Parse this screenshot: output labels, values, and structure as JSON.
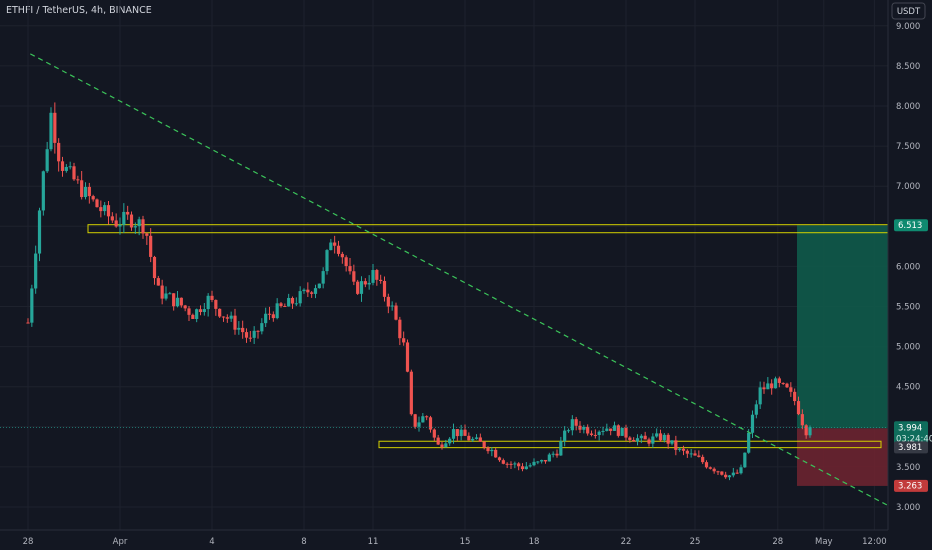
{
  "header": {
    "title": "ETHFI / TetherUS, 4h, BINANCE",
    "currency": "USDT"
  },
  "colors": {
    "background": "#131722",
    "grid": "#1e222d",
    "axis_text": "#b2b5be",
    "up": "#26a69a",
    "down": "#ef5350",
    "zone": "#d4d100",
    "trendline": "#3bc45a",
    "target_fill": "#0f5a4a",
    "stop_fill": "#6b2430"
  },
  "price_axis": {
    "ticks": [
      "9.000",
      "8.500",
      "8.000",
      "7.500",
      "7.000",
      "6.500",
      "6.000",
      "5.500",
      "5.000",
      "4.500",
      "4.000",
      "3.500",
      "3.000"
    ],
    "tags": {
      "target": "6.513",
      "current": "3.994",
      "countdown": "03:24:40",
      "entry": "3.981",
      "stop": "3.263"
    }
  },
  "time_axis": {
    "ticks": [
      "28",
      "Apr",
      "4",
      "8",
      "11",
      "15",
      "18",
      "22",
      "25",
      "28",
      "May",
      "12:00"
    ]
  },
  "chart_data": {
    "type": "candlestick",
    "title": "ETHFI / TetherUS, 4h, BINANCE",
    "ylim": [
      2.75,
      9.25
    ],
    "x_labels": [
      "28",
      "Apr",
      "4",
      "8",
      "11",
      "15",
      "18",
      "22",
      "25",
      "28",
      "May",
      "12:00"
    ],
    "path_points": [
      {
        "d": 0,
        "v": 5.3
      },
      {
        "d": 0.6,
        "v": 7.0
      },
      {
        "d": 1,
        "v": 7.9
      },
      {
        "d": 1.4,
        "v": 7.3
      },
      {
        "d": 2.2,
        "v": 7.0
      },
      {
        "d": 3,
        "v": 6.75
      },
      {
        "d": 3.8,
        "v": 6.55
      },
      {
        "d": 4.4,
        "v": 6.6
      },
      {
        "d": 5.1,
        "v": 6.5
      },
      {
        "d": 5.6,
        "v": 5.7
      },
      {
        "d": 6.5,
        "v": 5.55
      },
      {
        "d": 7.2,
        "v": 5.4
      },
      {
        "d": 7.8,
        "v": 5.6
      },
      {
        "d": 8.5,
        "v": 5.4
      },
      {
        "d": 9.3,
        "v": 5.2
      },
      {
        "d": 9.7,
        "v": 5.05
      },
      {
        "d": 10.4,
        "v": 5.4
      },
      {
        "d": 11.2,
        "v": 5.5
      },
      {
        "d": 12,
        "v": 5.65
      },
      {
        "d": 12.8,
        "v": 5.85
      },
      {
        "d": 13.2,
        "v": 6.4
      },
      {
        "d": 13.6,
        "v": 6.2
      },
      {
        "d": 14.2,
        "v": 5.7
      },
      {
        "d": 15,
        "v": 5.9
      },
      {
        "d": 15.8,
        "v": 5.5
      },
      {
        "d": 16.4,
        "v": 4.95
      },
      {
        "d": 16.7,
        "v": 4.0
      },
      {
        "d": 17.3,
        "v": 4.15
      },
      {
        "d": 17.8,
        "v": 3.75
      },
      {
        "d": 18.5,
        "v": 3.95
      },
      {
        "d": 19.2,
        "v": 3.85
      },
      {
        "d": 20,
        "v": 3.75
      },
      {
        "d": 20.8,
        "v": 3.55
      },
      {
        "d": 21.5,
        "v": 3.5
      },
      {
        "d": 22.3,
        "v": 3.55
      },
      {
        "d": 23,
        "v": 3.7
      },
      {
        "d": 23.6,
        "v": 4.05
      },
      {
        "d": 24.5,
        "v": 3.95
      },
      {
        "d": 25.3,
        "v": 4.0
      },
      {
        "d": 26,
        "v": 3.9
      },
      {
        "d": 26.8,
        "v": 3.82
      },
      {
        "d": 27.6,
        "v": 3.88
      },
      {
        "d": 28.3,
        "v": 3.7
      },
      {
        "d": 29,
        "v": 3.62
      },
      {
        "d": 29.7,
        "v": 3.5
      },
      {
        "d": 30.6,
        "v": 3.38
      },
      {
        "d": 31,
        "v": 3.45
      },
      {
        "d": 31.4,
        "v": 4.0
      },
      {
        "d": 31.8,
        "v": 4.45
      },
      {
        "d": 32.4,
        "v": 4.55
      },
      {
        "d": 33,
        "v": 4.45
      },
      {
        "d": 33.4,
        "v": 4.3
      },
      {
        "d": 33.8,
        "v": 3.95
      },
      {
        "d": 34.0,
        "v": 3.994
      }
    ],
    "zones": [
      {
        "from": 6.42,
        "to": 6.52
      },
      {
        "from": 3.74,
        "to": 3.82
      }
    ],
    "trendline": [
      {
        "d": 0.1,
        "v": 8.65
      },
      {
        "d": 39.5,
        "v": 2.7
      }
    ],
    "long_position": {
      "entry": 3.981,
      "target": 6.513,
      "stop": 3.263,
      "current": 3.994
    }
  }
}
